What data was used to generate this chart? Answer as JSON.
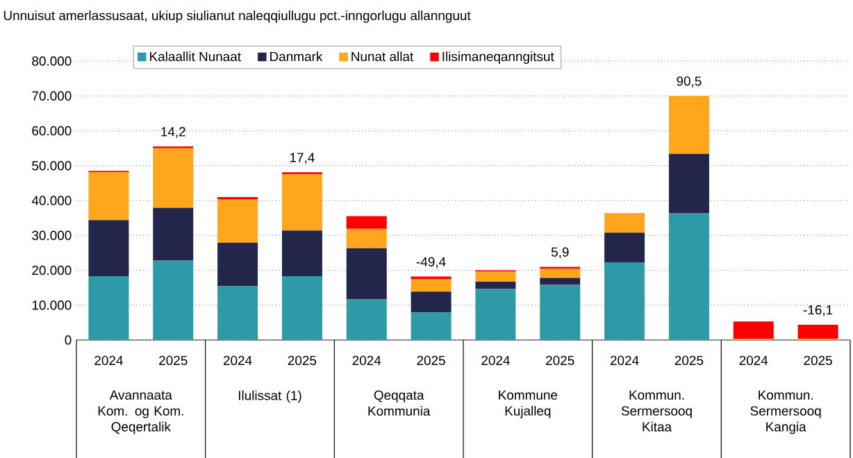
{
  "chart_data": {
    "type": "bar",
    "stacked": true,
    "title": "Unnuisut amerlassusaat, ukiup siulianut naleqqiullugu pct.-inngorlugu allannguut",
    "categories": [
      "2024",
      "2025",
      "2024",
      "2025",
      "2024",
      "2025",
      "2024",
      "2025",
      "2024",
      "2025",
      "2024",
      "2025"
    ],
    "series": [
      {
        "name": "Kalaallit Nunaat",
        "color": "#2e9aa8",
        "values": [
          18300,
          22800,
          15400,
          18300,
          11700,
          7900,
          14700,
          15800,
          22300,
          36300,
          0,
          0
        ]
      },
      {
        "name": "Danmark",
        "color": "#23254a",
        "values": [
          16100,
          15100,
          12500,
          13100,
          14600,
          6000,
          2000,
          2000,
          8500,
          17100,
          0,
          0
        ]
      },
      {
        "name": "Nunat allat",
        "color": "#ffa61c",
        "values": [
          13700,
          17100,
          12400,
          16100,
          5600,
          3600,
          2900,
          2600,
          5600,
          16600,
          300,
          400
        ]
      },
      {
        "name": "Ilisimaneqanngitsut",
        "color": "#ff0000",
        "values": [
          400,
          500,
          700,
          600,
          3600,
          700,
          400,
          600,
          0,
          0,
          5000,
          4000
        ]
      }
    ],
    "ylim": [
      0,
      80000
    ],
    "yticks": [
      {
        "value": 0,
        "label": "0"
      },
      {
        "value": 10000,
        "label": "10.000"
      },
      {
        "value": 20000,
        "label": "20.000"
      },
      {
        "value": 30000,
        "label": "30.000"
      },
      {
        "value": 40000,
        "label": "40.000"
      },
      {
        "value": 50000,
        "label": "50.000"
      },
      {
        "value": 60000,
        "label": "60.000"
      },
      {
        "value": 70000,
        "label": "70.000"
      },
      {
        "value": 80000,
        "label": "80.000"
      }
    ],
    "grid": "y",
    "legend": "top",
    "annotations": [
      "Avannaata Kom. og Kom. Qeqertalik",
      "Ilulissat (1)",
      "Qeqqata Kommunia",
      "Kommune Kujalleq",
      "Kommun. Sermersooq Kitaa",
      "Kommun. Sermersooq Kangia",
      "14,2",
      "17,4",
      "-49,4",
      "5,9",
      "90,5",
      "-16,1"
    ]
  }
}
